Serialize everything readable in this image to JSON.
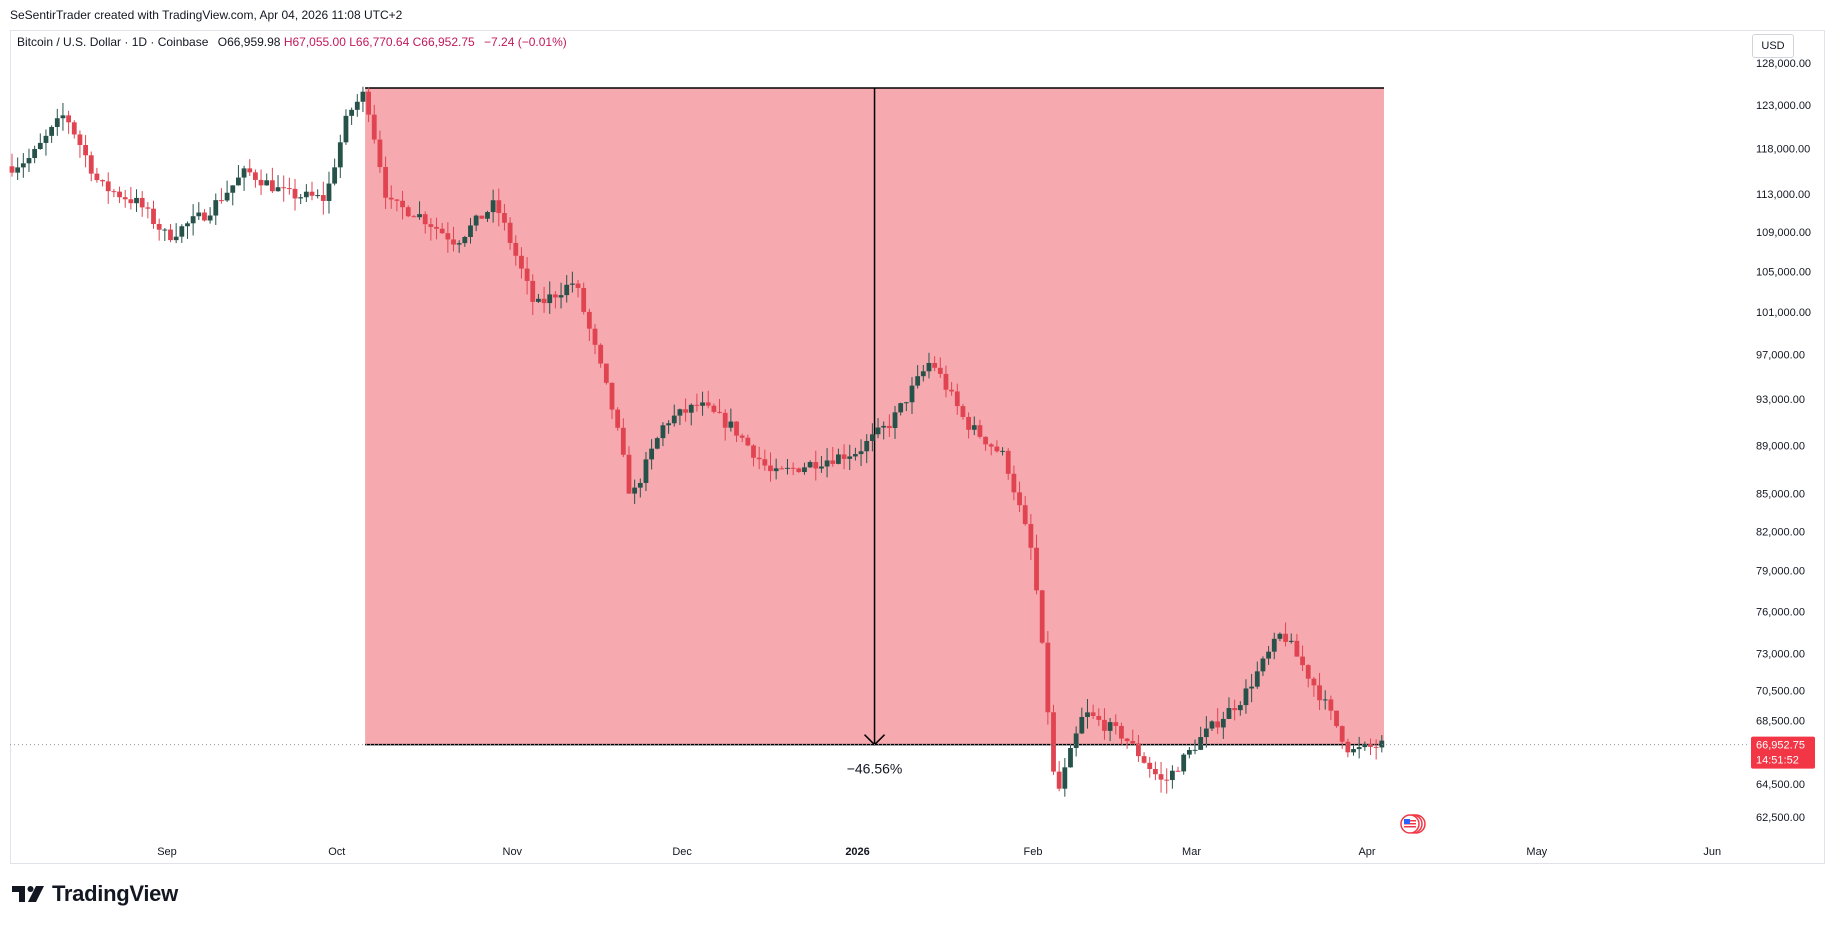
{
  "header": {
    "attribution": "SeSentirTrader created with TradingView.com, Apr 04, 2026 11:08 UTC+2"
  },
  "legend": {
    "symbol": "Bitcoin / U.S. Dollar · 1D · Coinbase",
    "open": "O66,959.98",
    "high": "H67,055.00",
    "low": "L66,770.64",
    "close": "C66,952.75",
    "change": "−7.24 (−0.01%)"
  },
  "currency_button": "USD",
  "measure_label": "−46.56%",
  "last_price": {
    "price": "66,952.75",
    "countdown": "14:51:52"
  },
  "brand": {
    "name": "TradingView"
  },
  "colors": {
    "up": "#26524a",
    "down": "#e04450",
    "zone": "#f7a9b0",
    "price_badge": "#f23645"
  },
  "chart_data": {
    "type": "candlestick",
    "y_scale": "log",
    "ylim": [
      61000,
      128500
    ],
    "y_ticks": [
      "128,000.00",
      "123,000.00",
      "118,000.00",
      "113,000.00",
      "109,000.00",
      "105,000.00",
      "101,000.00",
      "97,000.00",
      "93,000.00",
      "89,000.00",
      "85,000.00",
      "82,000.00",
      "79,000.00",
      "76,000.00",
      "73,000.00",
      "70,500.00",
      "68,500.00",
      "64,500.00",
      "62,500.00"
    ],
    "x_ticks": [
      "Sep",
      "Oct",
      "Nov",
      "Dec",
      "2026",
      "Feb",
      "Mar",
      "Apr",
      "May",
      "Jun"
    ],
    "measure_zone": {
      "start_price": 125000,
      "end_price": 66950,
      "start": "Oct 06, 2025",
      "end": "Apr 04, 2026",
      "change": "−46.56%"
    },
    "close_path": [
      [
        "2025-08-01",
        115000
      ],
      [
        "2025-08-08",
        117000
      ],
      [
        "2025-08-14",
        122000
      ],
      [
        "2025-08-20",
        114000
      ],
      [
        "2025-08-27",
        112000
      ],
      [
        "2025-09-01",
        108500
      ],
      [
        "2025-09-08",
        111000
      ],
      [
        "2025-09-15",
        115500
      ],
      [
        "2025-09-22",
        113000
      ],
      [
        "2025-09-29",
        112500
      ],
      [
        "2025-10-03",
        122000
      ],
      [
        "2025-10-06",
        124500
      ],
      [
        "2025-10-10",
        112000
      ],
      [
        "2025-10-15",
        111000
      ],
      [
        "2025-10-22",
        108000
      ],
      [
        "2025-10-29",
        112000
      ],
      [
        "2025-11-05",
        101500
      ],
      [
        "2025-11-12",
        104000
      ],
      [
        "2025-11-19",
        91500
      ],
      [
        "2025-11-22",
        84500
      ],
      [
        "2025-11-28",
        91000
      ],
      [
        "2025-12-04",
        92500
      ],
      [
        "2025-12-10",
        90500
      ],
      [
        "2025-12-17",
        86500
      ],
      [
        "2025-12-24",
        87500
      ],
      [
        "2026-01-01",
        88500
      ],
      [
        "2026-01-07",
        91000
      ],
      [
        "2026-01-14",
        96500
      ],
      [
        "2026-01-20",
        91000
      ],
      [
        "2026-01-27",
        88000
      ],
      [
        "2026-02-01",
        80000
      ],
      [
        "2026-02-05",
        63500
      ],
      [
        "2026-02-10",
        69000
      ],
      [
        "2026-02-17",
        67500
      ],
      [
        "2026-02-24",
        64500
      ],
      [
        "2026-03-03",
        67500
      ],
      [
        "2026-03-10",
        70000
      ],
      [
        "2026-03-17",
        74500
      ],
      [
        "2026-03-24",
        70000
      ],
      [
        "2026-03-29",
        66500
      ],
      [
        "2026-04-04",
        66952.75
      ]
    ]
  }
}
